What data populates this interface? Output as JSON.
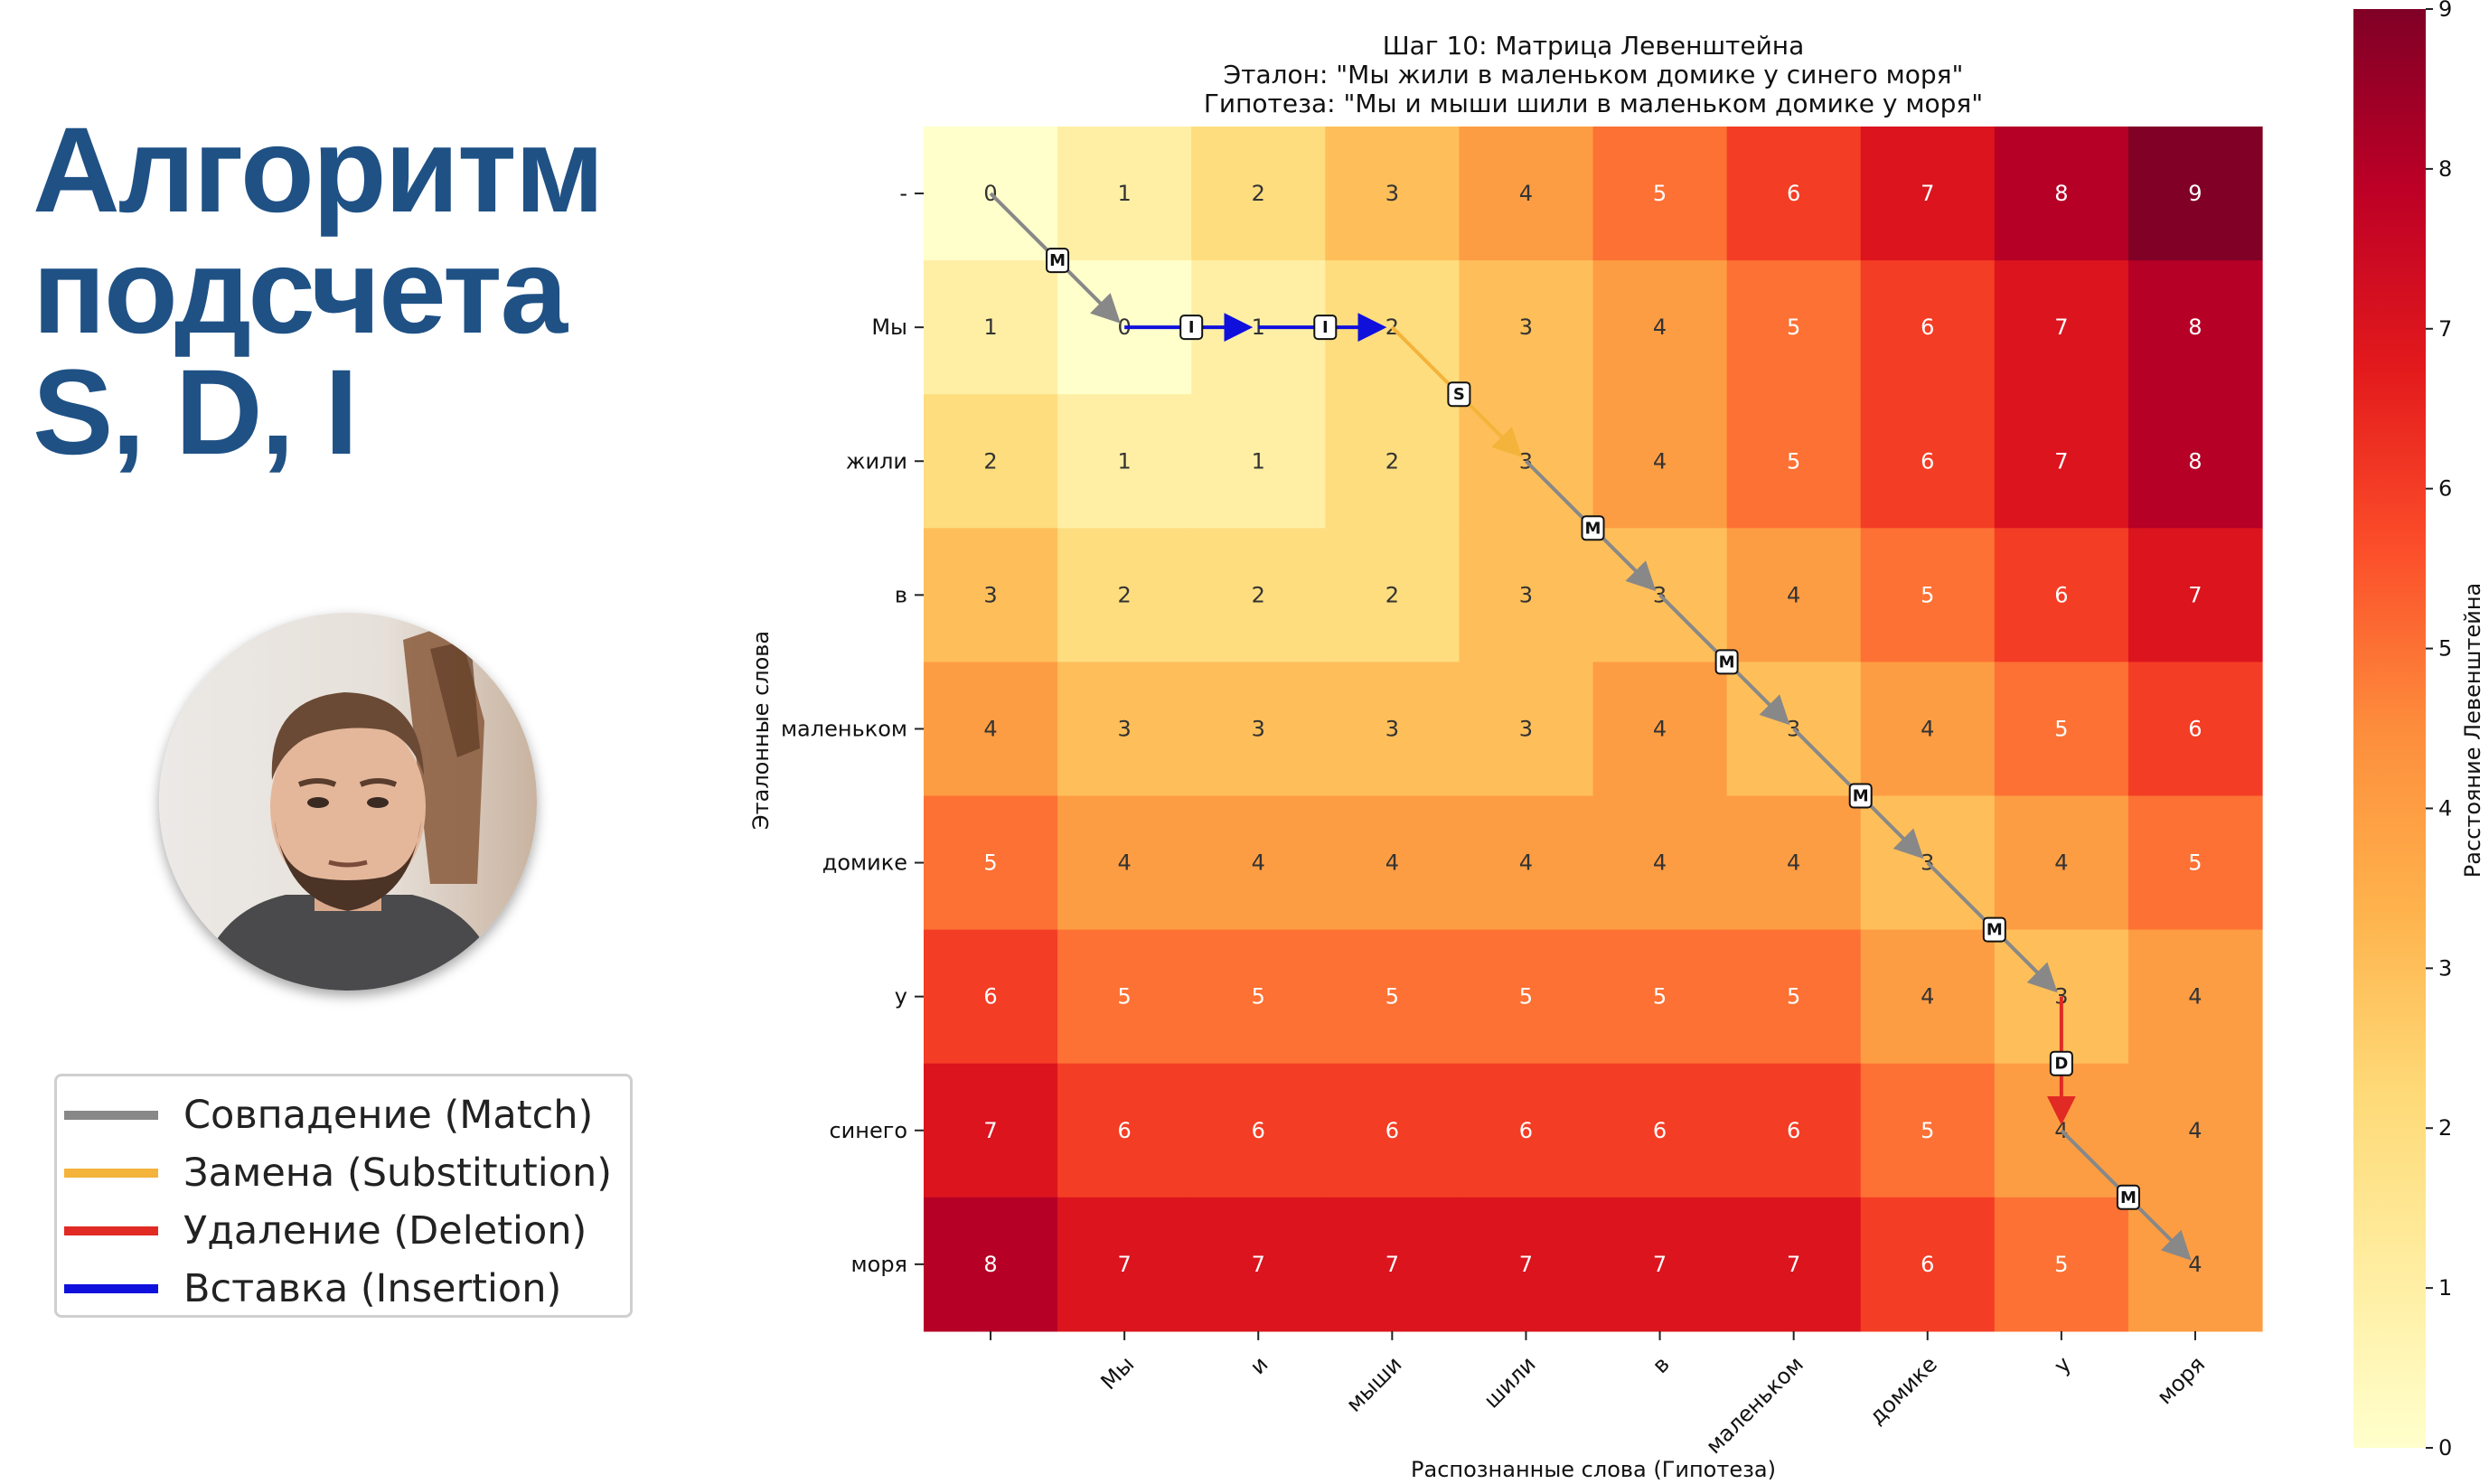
{
  "slide": {
    "title_lines": [
      "Алгоритм",
      "подсчета",
      "S, D, I"
    ]
  },
  "legend": {
    "items": [
      {
        "label": "Совпадение (Match)",
        "color": "#888888"
      },
      {
        "label": "Замена (Substitution)",
        "color": "#f4b33a"
      },
      {
        "label": "Удаление (Deletion)",
        "color": "#e02a23"
      },
      {
        "label": "Вставка (Insertion)",
        "color": "#1010dd"
      }
    ]
  },
  "colors": {
    "cmap": [
      "#ffffcc",
      "#ffeda0",
      "#fed976",
      "#feb24c",
      "#fd8d3c",
      "#fc4e2a",
      "#e31a1c",
      "#bd0026",
      "#800026"
    ],
    "path_match": "#888888",
    "path_substitution": "#f4b33a",
    "path_deletion": "#e02a23",
    "path_insertion": "#1010dd",
    "title_text": "#1f5185"
  },
  "chart_data": {
    "type": "heatmap",
    "title": [
      "Шаг 10: Матрица Левенштейна",
      "Эталон: \"Мы жили в маленьком домике у синего моря\"",
      "Гипотеза: \"Мы и мыши шили в маленьком домике у моря\""
    ],
    "xlabel": "Распознанные слова (Гипотеза)",
    "ylabel": "Эталонные слова",
    "x_categories": [
      "-",
      "Мы",
      "и",
      "мыши",
      "шили",
      "в",
      "маленьком",
      "домике",
      "у",
      "моря"
    ],
    "y_categories": [
      "-",
      "Мы",
      "жили",
      "в",
      "маленьком",
      "домике",
      "у",
      "синего",
      "моря"
    ],
    "x_tick_labels": [
      "",
      "Мы",
      "и",
      "мыши",
      "шили",
      "в",
      "маленьком",
      "домике",
      "у",
      "моря"
    ],
    "values": [
      [
        0,
        1,
        2,
        3,
        4,
        5,
        6,
        7,
        8,
        9
      ],
      [
        1,
        0,
        1,
        2,
        3,
        4,
        5,
        6,
        7,
        8
      ],
      [
        2,
        1,
        1,
        2,
        3,
        4,
        5,
        6,
        7,
        8
      ],
      [
        3,
        2,
        2,
        2,
        3,
        3,
        4,
        5,
        6,
        7
      ],
      [
        4,
        3,
        3,
        3,
        3,
        4,
        3,
        4,
        5,
        6
      ],
      [
        5,
        4,
        4,
        4,
        4,
        4,
        4,
        3,
        4,
        5
      ],
      [
        6,
        5,
        5,
        5,
        5,
        5,
        5,
        4,
        3,
        4
      ],
      [
        7,
        6,
        6,
        6,
        6,
        6,
        6,
        5,
        4,
        4
      ],
      [
        8,
        7,
        7,
        7,
        7,
        7,
        7,
        6,
        5,
        4
      ]
    ],
    "path": [
      {
        "from": [
          0,
          0
        ],
        "to": [
          1,
          1
        ],
        "op": "M"
      },
      {
        "from": [
          1,
          1
        ],
        "to": [
          1,
          2
        ],
        "op": "I"
      },
      {
        "from": [
          1,
          2
        ],
        "to": [
          1,
          3
        ],
        "op": "I"
      },
      {
        "from": [
          1,
          3
        ],
        "to": [
          2,
          4
        ],
        "op": "S"
      },
      {
        "from": [
          2,
          4
        ],
        "to": [
          3,
          5
        ],
        "op": "M"
      },
      {
        "from": [
          3,
          5
        ],
        "to": [
          4,
          6
        ],
        "op": "M"
      },
      {
        "from": [
          4,
          6
        ],
        "to": [
          5,
          7
        ],
        "op": "M"
      },
      {
        "from": [
          5,
          7
        ],
        "to": [
          6,
          8
        ],
        "op": "M"
      },
      {
        "from": [
          6,
          8
        ],
        "to": [
          7,
          8
        ],
        "op": "D"
      },
      {
        "from": [
          7,
          8
        ],
        "to": [
          8,
          9
        ],
        "op": "M"
      }
    ],
    "colorbar": {
      "label": "Расстояние Левенштейна",
      "range": [
        0,
        9
      ],
      "ticks": [
        "0",
        "1",
        "2",
        "3",
        "4",
        "5",
        "6",
        "7",
        "8",
        "9"
      ]
    }
  }
}
